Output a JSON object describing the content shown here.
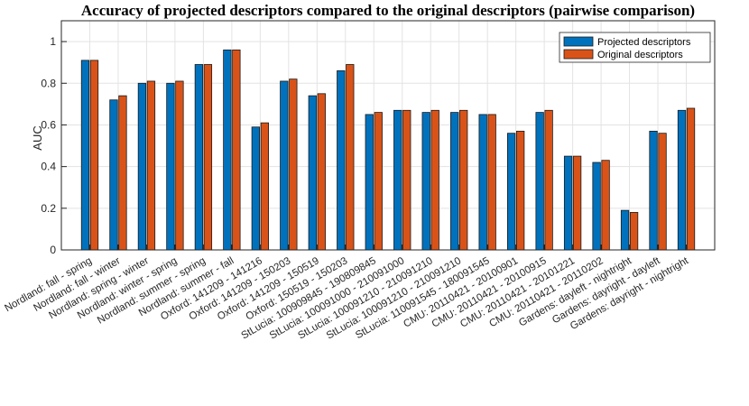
{
  "chart_data": {
    "type": "bar",
    "title": "Accuracy of projected descriptors compared to the original descriptors (pairwise comparison)",
    "xlabel": "",
    "ylabel": "AUC",
    "ylim": [
      0,
      1.1
    ],
    "yticks": [
      0,
      0.2,
      0.4,
      0.6,
      0.8,
      1
    ],
    "ytick_labels": [
      "0",
      "0.2",
      "0.4",
      "0.6",
      "0.8",
      "1"
    ],
    "grid": true,
    "legend_position": "top-right",
    "categories": [
      "Nordland: fall - spring",
      "Nordland: fall - winter",
      "Nordland: spring - winter",
      "Nordland: winter - spring",
      "Nordland: summer - spring",
      "Nordland: summer - fall",
      "Oxford: 141209 - 141216",
      "Oxford: 141209 - 150203",
      "Oxford: 141209 - 150519",
      "Oxford: 150519 - 150203",
      "StLucia: 100909845 - 190809845",
      "StLucia: 100091000 - 210091000",
      "StLucia: 100091210 - 210091210",
      "StLucia: 100091210 - 210091210",
      "StLucia: 110091545 - 180091545",
      "CMU: 20110421 - 20100901",
      "CMU: 20110421 - 20100915",
      "CMU: 20110421 - 20101221",
      "CMU: 20110421 - 20110202",
      "Gardens: dayleft - nightright",
      "Gardens: dayright - dayleft",
      "Gardens: dayright - nightright"
    ],
    "series": [
      {
        "name": "Projected descriptors",
        "color": "#0072BD",
        "values": [
          0.91,
          0.72,
          0.8,
          0.8,
          0.89,
          0.96,
          0.59,
          0.81,
          0.74,
          0.86,
          0.65,
          0.67,
          0.66,
          0.66,
          0.65,
          0.56,
          0.66,
          0.45,
          0.42,
          0.19,
          0.57,
          0.67
        ]
      },
      {
        "name": "Original descriptors",
        "color": "#D95319",
        "values": [
          0.91,
          0.74,
          0.81,
          0.81,
          0.89,
          0.96,
          0.61,
          0.82,
          0.75,
          0.89,
          0.66,
          0.67,
          0.67,
          0.67,
          0.65,
          0.57,
          0.67,
          0.45,
          0.43,
          0.18,
          0.56,
          0.68
        ]
      }
    ]
  }
}
